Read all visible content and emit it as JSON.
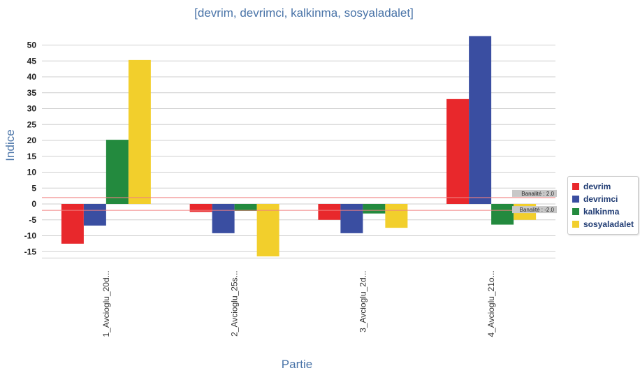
{
  "chart_data": {
    "type": "bar",
    "title": "[devrim, devrimci, kalkinma, sosyaladalet]",
    "xlabel": "Partie",
    "ylabel": "Indice",
    "categories": [
      "1_Avcioglu_20d...",
      "2_Avcioglu_25s...",
      "3_Avcioglu_2d...",
      "4_Avcioglu_21o..."
    ],
    "ylim": [
      -17,
      53
    ],
    "yticks": [
      -15,
      -10,
      -5,
      0,
      5,
      10,
      15,
      20,
      25,
      30,
      35,
      40,
      45,
      50
    ],
    "ytick_labels": [
      "-15",
      "-10",
      "-5",
      "0",
      "5",
      "10",
      "15",
      "20",
      "25",
      "30",
      "35",
      "40",
      "45",
      "50"
    ],
    "grid": true,
    "legend_position": "right",
    "series": [
      {
        "name": "devrim",
        "color": "#e8282c",
        "values": [
          -12.5,
          -2.5,
          -5.0,
          33.0
        ]
      },
      {
        "name": "devrimci",
        "color": "#3a4ea1",
        "values": [
          -6.8,
          -9.2,
          -9.2,
          52.8
        ]
      },
      {
        "name": "kalkinma",
        "color": "#238a3e",
        "values": [
          20.2,
          -2.2,
          -3.0,
          -6.5
        ]
      },
      {
        "name": "sosyaladalet",
        "color": "#f2cf2c",
        "values": [
          45.3,
          -16.5,
          -7.5,
          -5.0
        ]
      }
    ],
    "reference_lines": [
      {
        "value": 2.0,
        "label": "Banalité : 2.0",
        "color": "#f08080"
      },
      {
        "value": -2.0,
        "label": "Banalité : -2.0",
        "color": "#f08080"
      }
    ]
  }
}
